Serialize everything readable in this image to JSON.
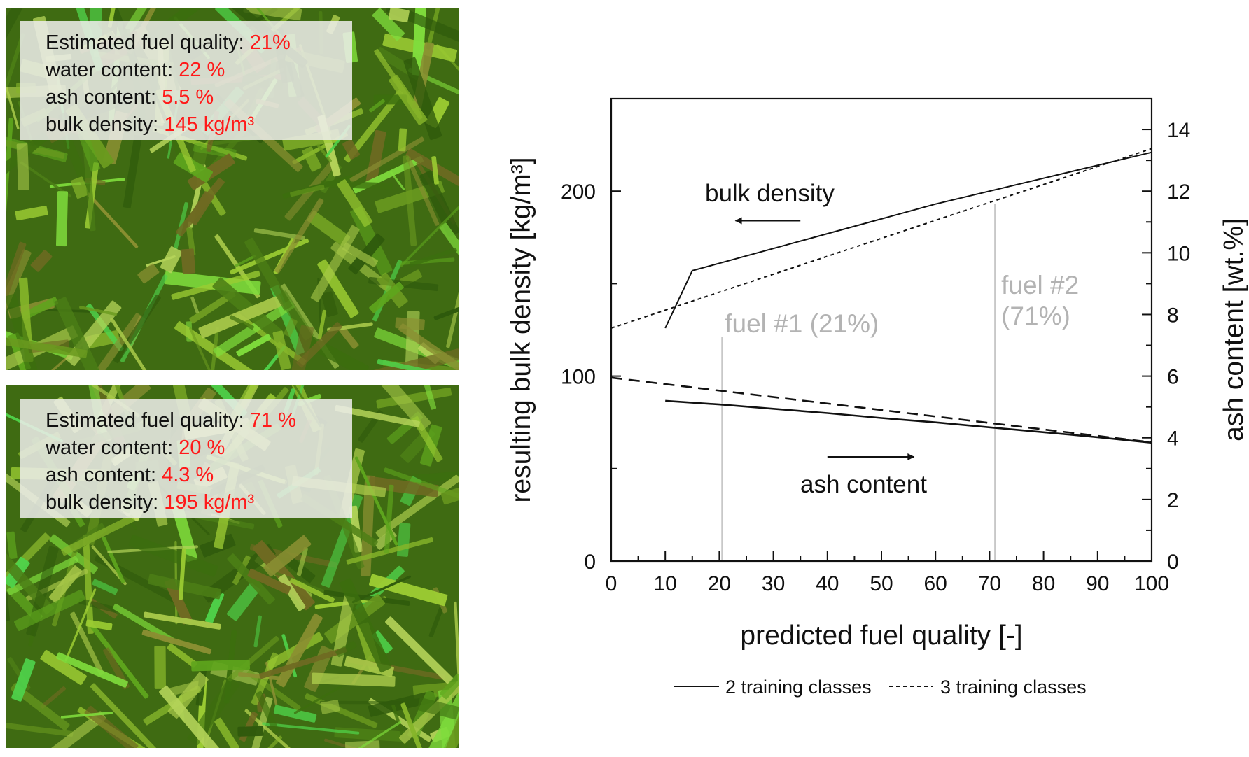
{
  "panels": [
    {
      "id": "top",
      "lines": [
        {
          "label": "Estimated fuel quality:",
          "value": "21%"
        },
        {
          "label": "water content:",
          "value": "22 %"
        },
        {
          "label": "ash content:",
          "value": "5.5 %"
        },
        {
          "label": "bulk density:",
          "value": "145 kg/m³"
        }
      ]
    },
    {
      "id": "bottom",
      "lines": [
        {
          "label": "Estimated fuel quality:",
          "value": "71 %"
        },
        {
          "label": "water content:",
          "value": "20 %"
        },
        {
          "label": "ash content:",
          "value": "4.3 %"
        },
        {
          "label": "bulk density:",
          "value": "195 kg/m³"
        }
      ]
    }
  ],
  "colors": {
    "value_text": "#ff1a1a",
    "line": "#111111",
    "marker_line": "#c8c8c8",
    "marker_text": "#b3b3b3",
    "photo_base": "#3f6b12"
  },
  "chart_data": {
    "type": "line",
    "title": "",
    "xlabel": "predicted fuel quality [-]",
    "ylabel": "resulting bulk density [kg/m³]",
    "y2label": "ash content [wt.%]",
    "xlim": [
      0,
      100
    ],
    "ylim": [
      0,
      250
    ],
    "y2lim": [
      0,
      15
    ],
    "x_ticks": [
      0,
      10,
      20,
      30,
      40,
      50,
      60,
      70,
      80,
      90,
      100
    ],
    "y_ticks": [
      0,
      100,
      200
    ],
    "y2_ticks": [
      0,
      2,
      4,
      6,
      8,
      10,
      12,
      14
    ],
    "grid": false,
    "legend_position": "bottom",
    "series": [
      {
        "name": "2 training classes",
        "quantity": "bulk density",
        "axis": "left",
        "style": "solid",
        "x": [
          10,
          15,
          20,
          30,
          40,
          50,
          60,
          70,
          80,
          90,
          100
        ],
        "y": [
          126,
          157,
          161,
          169,
          177,
          185,
          193,
          200,
          207,
          214,
          221
        ]
      },
      {
        "name": "3 training classes",
        "quantity": "bulk density",
        "axis": "left",
        "style": "dotted",
        "x": [
          0,
          100
        ],
        "y": [
          126,
          223
        ]
      },
      {
        "name": "2 training classes",
        "quantity": "ash content",
        "axis": "right",
        "style": "solid",
        "x": [
          10,
          20,
          30,
          40,
          50,
          60,
          70,
          80,
          90,
          100
        ],
        "y": [
          5.2,
          5.08,
          4.94,
          4.8,
          4.64,
          4.5,
          4.34,
          4.18,
          4.02,
          3.84
        ]
      },
      {
        "name": "3 training classes",
        "quantity": "ash content",
        "axis": "right",
        "style": "dashed",
        "x": [
          0,
          100
        ],
        "y": [
          5.95,
          3.85
        ]
      }
    ],
    "markers": [
      {
        "x": 20.5,
        "label": "fuel #1 (21%)"
      },
      {
        "x": 71,
        "label": "fuel #2 (71%)"
      }
    ],
    "annotations": [
      {
        "text": "bulk density",
        "arrow": "left",
        "x_from": 35,
        "x_to": 23,
        "y": 184
      },
      {
        "text": "ash content",
        "arrow": "right",
        "x_from": 40,
        "x_to": 56,
        "y2": 3.5
      }
    ],
    "legend": [
      "2 training classes",
      "3 training classes"
    ]
  }
}
